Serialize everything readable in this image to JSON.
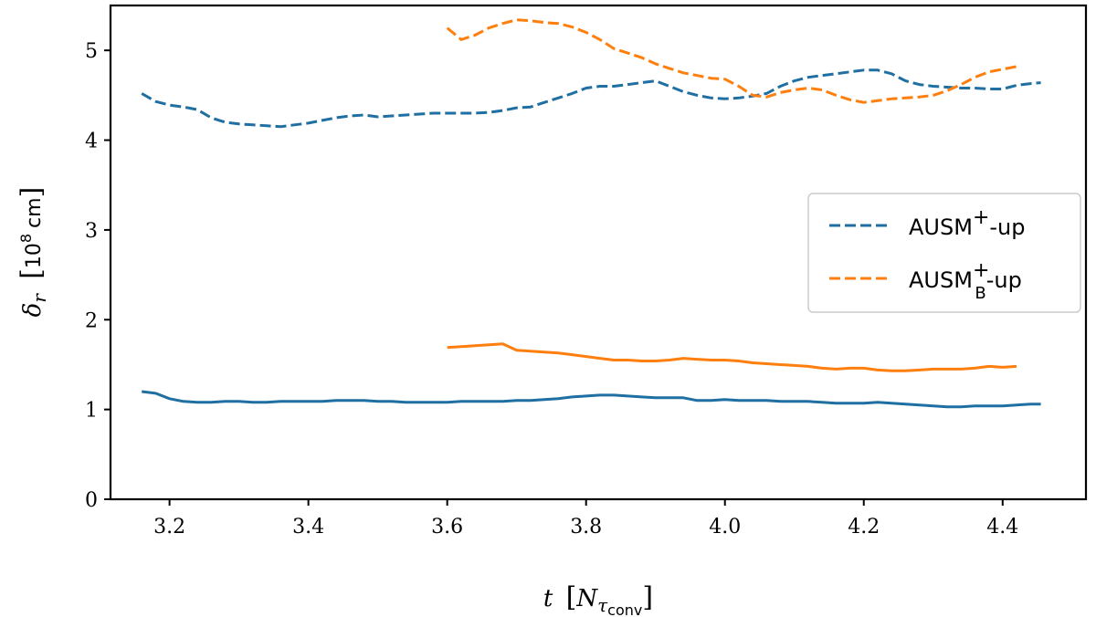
{
  "chart_data": {
    "type": "line",
    "title": "",
    "xlabel": {
      "symbol": "t",
      "unit_prefix": "N",
      "unit_sub": "τ",
      "unit_subsub": "conv"
    },
    "ylabel": {
      "symbol": "δ",
      "sub": "r",
      "unit_base": "10",
      "unit_exp": "8",
      "unit": "cm"
    },
    "xlim": [
      3.115,
      4.52
    ],
    "ylim": [
      0,
      5.5
    ],
    "xticks": [
      "3.2",
      "3.4",
      "3.6",
      "3.8",
      "4.0",
      "4.2",
      "4.4"
    ],
    "xtick_values": [
      3.2,
      3.4,
      3.6,
      3.8,
      4.0,
      4.2,
      4.4
    ],
    "yticks": [
      "0",
      "1",
      "2",
      "3",
      "4",
      "5"
    ],
    "ytick_values": [
      0,
      1,
      2,
      3,
      4,
      5
    ],
    "grid": false,
    "legend_position": "center-right",
    "legend": [
      {
        "label": "AUSM",
        "sup": "+",
        "sub": "",
        "suffix": "-up",
        "color": "#1f6fa3",
        "style": "dashed"
      },
      {
        "label": "AUSM",
        "sup": "+",
        "sub": "B",
        "suffix": "-up",
        "color": "#ff7f0e",
        "style": "dashed"
      }
    ],
    "series": [
      {
        "name": "AUSM+-up dashed",
        "color": "#1f6fa3",
        "style": "dashed",
        "x": [
          3.16,
          3.18,
          3.2,
          3.22,
          3.24,
          3.26,
          3.28,
          3.3,
          3.32,
          3.34,
          3.36,
          3.38,
          3.4,
          3.42,
          3.44,
          3.46,
          3.48,
          3.5,
          3.52,
          3.54,
          3.56,
          3.58,
          3.6,
          3.62,
          3.64,
          3.66,
          3.68,
          3.7,
          3.72,
          3.74,
          3.76,
          3.78,
          3.8,
          3.82,
          3.84,
          3.86,
          3.88,
          3.9,
          3.92,
          3.94,
          3.96,
          3.98,
          4.0,
          4.02,
          4.04,
          4.06,
          4.08,
          4.1,
          4.12,
          4.14,
          4.16,
          4.18,
          4.2,
          4.22,
          4.24,
          4.26,
          4.28,
          4.3,
          4.32,
          4.34,
          4.36,
          4.38,
          4.4,
          4.42,
          4.44,
          4.455
        ],
        "values": [
          4.52,
          4.43,
          4.39,
          4.37,
          4.34,
          4.25,
          4.2,
          4.18,
          4.17,
          4.16,
          4.15,
          4.17,
          4.19,
          4.22,
          4.25,
          4.27,
          4.28,
          4.26,
          4.27,
          4.28,
          4.29,
          4.3,
          4.3,
          4.3,
          4.3,
          4.31,
          4.33,
          4.36,
          4.37,
          4.42,
          4.47,
          4.52,
          4.58,
          4.6,
          4.6,
          4.62,
          4.64,
          4.66,
          4.6,
          4.54,
          4.5,
          4.47,
          4.46,
          4.47,
          4.49,
          4.52,
          4.6,
          4.66,
          4.7,
          4.72,
          4.74,
          4.76,
          4.78,
          4.78,
          4.74,
          4.66,
          4.62,
          4.6,
          4.59,
          4.58,
          4.58,
          4.57,
          4.57,
          4.61,
          4.63,
          4.64
        ]
      },
      {
        "name": "AUSM+-up solid",
        "color": "#1f6fa3",
        "style": "solid",
        "x": [
          3.16,
          3.18,
          3.2,
          3.22,
          3.24,
          3.26,
          3.28,
          3.3,
          3.32,
          3.34,
          3.36,
          3.38,
          3.4,
          3.42,
          3.44,
          3.46,
          3.48,
          3.5,
          3.52,
          3.54,
          3.56,
          3.58,
          3.6,
          3.62,
          3.64,
          3.66,
          3.68,
          3.7,
          3.72,
          3.74,
          3.76,
          3.78,
          3.8,
          3.82,
          3.84,
          3.86,
          3.88,
          3.9,
          3.92,
          3.94,
          3.96,
          3.98,
          4.0,
          4.02,
          4.04,
          4.06,
          4.08,
          4.1,
          4.12,
          4.14,
          4.16,
          4.18,
          4.2,
          4.22,
          4.24,
          4.26,
          4.28,
          4.3,
          4.32,
          4.34,
          4.36,
          4.38,
          4.4,
          4.42,
          4.44,
          4.455
        ],
        "values": [
          1.2,
          1.18,
          1.12,
          1.09,
          1.08,
          1.08,
          1.09,
          1.09,
          1.08,
          1.08,
          1.09,
          1.09,
          1.09,
          1.09,
          1.1,
          1.1,
          1.1,
          1.09,
          1.09,
          1.08,
          1.08,
          1.08,
          1.08,
          1.09,
          1.09,
          1.09,
          1.09,
          1.1,
          1.1,
          1.11,
          1.12,
          1.14,
          1.15,
          1.16,
          1.16,
          1.15,
          1.14,
          1.13,
          1.13,
          1.13,
          1.1,
          1.1,
          1.11,
          1.1,
          1.1,
          1.1,
          1.09,
          1.09,
          1.09,
          1.08,
          1.07,
          1.07,
          1.07,
          1.08,
          1.07,
          1.06,
          1.05,
          1.04,
          1.03,
          1.03,
          1.04,
          1.04,
          1.04,
          1.05,
          1.06,
          1.06
        ]
      },
      {
        "name": "AUSM_B+-up dashed",
        "color": "#ff7f0e",
        "style": "dashed",
        "x": [
          3.6,
          3.62,
          3.64,
          3.66,
          3.68,
          3.7,
          3.72,
          3.74,
          3.76,
          3.78,
          3.8,
          3.82,
          3.84,
          3.86,
          3.88,
          3.9,
          3.92,
          3.94,
          3.96,
          3.98,
          4.0,
          4.02,
          4.04,
          4.06,
          4.08,
          4.1,
          4.12,
          4.14,
          4.16,
          4.18,
          4.2,
          4.22,
          4.24,
          4.26,
          4.28,
          4.3,
          4.32,
          4.34,
          4.36,
          4.38,
          4.4,
          4.42
        ],
        "values": [
          5.25,
          5.12,
          5.17,
          5.25,
          5.3,
          5.34,
          5.33,
          5.31,
          5.3,
          5.26,
          5.2,
          5.12,
          5.02,
          4.97,
          4.92,
          4.85,
          4.8,
          4.75,
          4.72,
          4.69,
          4.68,
          4.6,
          4.5,
          4.48,
          4.53,
          4.56,
          4.58,
          4.56,
          4.5,
          4.45,
          4.42,
          4.44,
          4.46,
          4.47,
          4.48,
          4.5,
          4.55,
          4.62,
          4.7,
          4.76,
          4.79,
          4.82
        ]
      },
      {
        "name": "AUSM_B+-up solid",
        "color": "#ff7f0e",
        "style": "solid",
        "x": [
          3.6,
          3.62,
          3.64,
          3.66,
          3.68,
          3.7,
          3.72,
          3.74,
          3.76,
          3.78,
          3.8,
          3.82,
          3.84,
          3.86,
          3.88,
          3.9,
          3.92,
          3.94,
          3.96,
          3.98,
          4.0,
          4.02,
          4.04,
          4.06,
          4.08,
          4.1,
          4.12,
          4.14,
          4.16,
          4.18,
          4.2,
          4.22,
          4.24,
          4.26,
          4.28,
          4.3,
          4.32,
          4.34,
          4.36,
          4.38,
          4.4,
          4.42
        ],
        "values": [
          1.69,
          1.7,
          1.71,
          1.72,
          1.73,
          1.66,
          1.65,
          1.64,
          1.63,
          1.61,
          1.59,
          1.57,
          1.55,
          1.55,
          1.54,
          1.54,
          1.55,
          1.57,
          1.56,
          1.55,
          1.55,
          1.54,
          1.52,
          1.51,
          1.5,
          1.49,
          1.48,
          1.46,
          1.45,
          1.46,
          1.46,
          1.44,
          1.43,
          1.43,
          1.44,
          1.45,
          1.45,
          1.45,
          1.46,
          1.48,
          1.47,
          1.48
        ]
      }
    ]
  }
}
